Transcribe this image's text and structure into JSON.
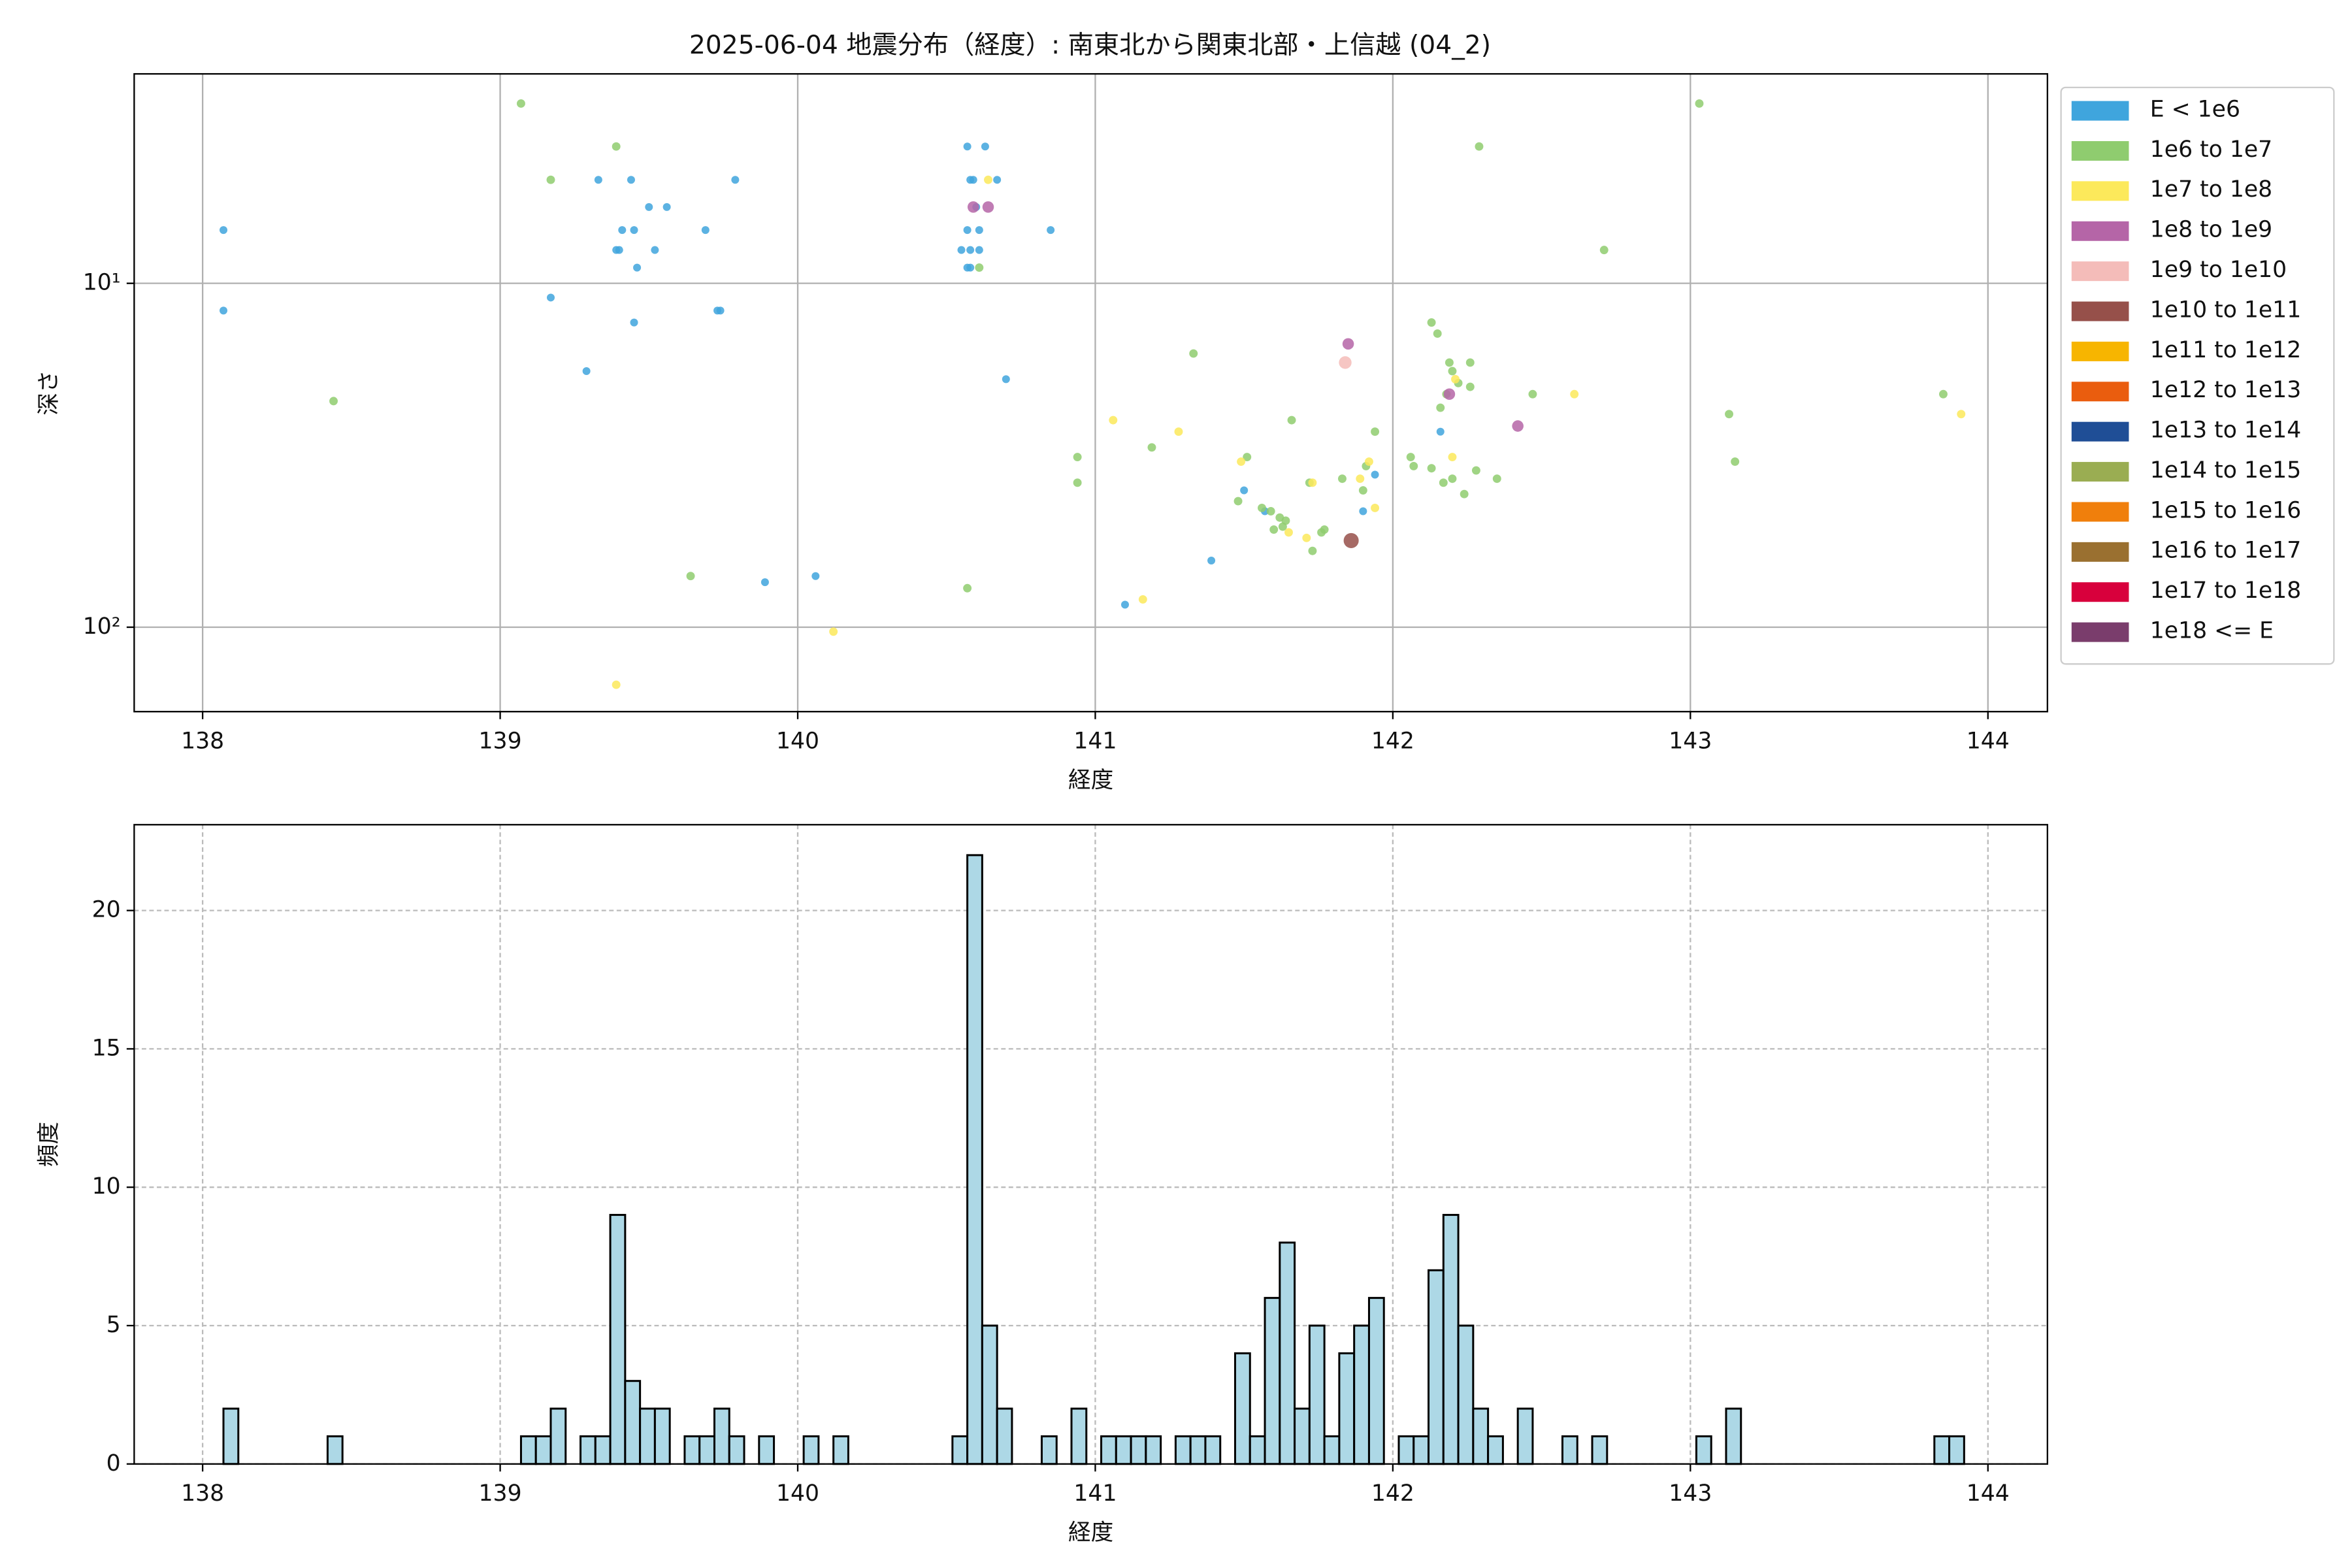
{
  "chart_data": [
    {
      "type": "scatter",
      "title": "2025-06-04 地震分布（経度）: 南東北から関東北部・上信越 (04_2)",
      "xlabel": "経度",
      "ylabel": "深さ",
      "xlim": [
        137.77,
        144.2
      ],
      "xticks": [
        138,
        139,
        140,
        141,
        142,
        143,
        144
      ],
      "ylim": [
        176,
        2.46
      ],
      "yscale": "log",
      "yticks": [
        {
          "value": 10,
          "label": "10¹"
        },
        {
          "value": 100,
          "label": "10²"
        }
      ],
      "grid": true,
      "legend": "outside upper right",
      "series": [
        {
          "name": "E < 1e6",
          "color": "#3fa5dd",
          "x": [
            138.07,
            138.07,
            139.17,
            139.29,
            139.33,
            139.39,
            139.4,
            139.41,
            139.44,
            139.45,
            139.46,
            139.45,
            139.5,
            139.52,
            139.56,
            139.69,
            139.73,
            139.74,
            139.79,
            139.89,
            140.06,
            140.57,
            140.63,
            140.58,
            140.59,
            140.6,
            140.57,
            140.61,
            140.55,
            140.58,
            140.61,
            140.58,
            140.57,
            140.67,
            140.7,
            140.85,
            141.1,
            141.39,
            141.5,
            141.57,
            141.9,
            141.94,
            142.16
          ],
          "values": [
            7,
            12,
            11,
            18,
            5,
            8,
            8,
            7,
            5,
            7,
            9,
            13,
            6,
            8,
            6,
            7,
            12,
            12,
            5,
            74,
            71,
            4,
            4,
            5,
            5,
            6,
            7,
            7,
            8,
            8,
            8,
            9,
            9,
            5,
            19,
            7,
            86,
            64,
            40,
            46,
            46,
            36,
            27
          ]
        },
        {
          "name": "1e6 to 1e7",
          "color": "#8fcc6f",
          "x": [
            139.07,
            138.44,
            139.17,
            139.39,
            139.64,
            140.57,
            140.61,
            140.94,
            140.94,
            141.19,
            141.33,
            141.51,
            141.48,
            141.56,
            141.59,
            141.62,
            141.6,
            141.64,
            141.63,
            141.66,
            141.72,
            141.73,
            141.76,
            141.77,
            141.83,
            141.9,
            141.91,
            141.94,
            142.06,
            142.07,
            142.13,
            142.15,
            142.16,
            142.18,
            142.19,
            142.2,
            142.22,
            142.26,
            142.26,
            142.29,
            142.13,
            142.17,
            142.2,
            142.24,
            142.28,
            142.35,
            142.47,
            142.71,
            143.03,
            143.13,
            143.15,
            143.85
          ],
          "values": [
            3,
            22,
            5,
            4,
            71,
            77,
            9,
            32,
            38,
            30,
            16,
            32,
            43,
            45,
            46,
            48,
            52,
            49,
            51,
            25,
            38,
            60,
            53,
            52,
            37,
            40,
            34,
            27,
            32,
            34,
            13,
            14,
            23,
            21,
            17,
            18,
            19.5,
            17,
            20,
            4,
            34.5,
            38,
            37,
            41,
            35,
            37,
            21,
            8,
            3,
            24,
            33,
            21
          ]
        },
        {
          "name": "1e7 to 1e8",
          "color": "#fce95b",
          "x": [
            139.39,
            140.12,
            141.06,
            141.16,
            141.28,
            141.49,
            141.65,
            141.71,
            141.73,
            141.89,
            141.92,
            141.94,
            142.2,
            142.21,
            142.61,
            143.91,
            140.64
          ],
          "values": [
            147,
            103,
            25,
            83,
            27,
            33,
            53,
            55,
            38,
            37,
            33,
            45,
            32,
            19,
            21,
            24,
            5
          ]
        },
        {
          "name": "1e8 to 1e9",
          "color": "#b565a7",
          "x": [
            140.59,
            140.64,
            141.85,
            142.19,
            142.42
          ],
          "values": [
            6,
            6,
            15,
            21,
            26
          ]
        },
        {
          "name": "1e9 to 1e10",
          "color": "#f4bcb9",
          "x": [
            141.84
          ],
          "values": [
            17
          ]
        },
        {
          "name": "1e10 to 1e11",
          "color": "#96504a",
          "x": [
            141.86
          ],
          "values": [
            56
          ]
        },
        {
          "name": "1e11 to 1e12",
          "color": "#f7b500",
          "x": [],
          "values": []
        },
        {
          "name": "1e12 to 1e13",
          "color": "#ea5d0e",
          "x": [],
          "values": []
        },
        {
          "name": "1e13 to 1e14",
          "color": "#1f4e96",
          "x": [],
          "values": []
        },
        {
          "name": "1e14 to 1e15",
          "color": "#9aad52",
          "x": [],
          "values": []
        },
        {
          "name": "1e15 to 1e16",
          "color": "#f07f0c",
          "x": [],
          "values": []
        },
        {
          "name": "1e16 to 1e17",
          "color": "#9a7030",
          "x": [],
          "values": []
        },
        {
          "name": "1e17 to 1e18",
          "color": "#d8003c",
          "x": [],
          "values": []
        },
        {
          "name": "1e18 <= E",
          "color": "#7a3d6c",
          "x": [],
          "values": []
        }
      ]
    },
    {
      "type": "histogram",
      "xlabel": "経度",
      "ylabel": "頻度",
      "color": "#add8e6",
      "edgecolor": "#000000",
      "xlim": [
        137.77,
        144.2
      ],
      "xticks": [
        138,
        139,
        140,
        141,
        142,
        143,
        144
      ],
      "ylim": [
        0,
        23.1
      ],
      "yticks": [
        0,
        5,
        10,
        15,
        20
      ],
      "grid": true,
      "grid_style": "dashed",
      "bins": [
        138.07,
        138.12,
        138.17,
        138.22,
        138.27,
        138.32,
        138.37,
        138.42,
        138.47,
        138.52,
        138.57,
        138.62,
        138.67,
        138.72,
        138.77,
        138.82,
        138.87,
        138.92,
        138.97,
        139.02,
        139.07,
        139.12,
        139.17,
        139.22,
        139.27,
        139.32,
        139.37,
        139.42,
        139.47,
        139.52,
        139.57,
        139.62,
        139.67,
        139.72,
        139.77,
        139.82,
        139.87,
        139.92,
        139.97,
        140.02,
        140.07,
        140.12,
        140.17,
        140.22,
        140.27,
        140.32,
        140.37,
        140.42,
        140.47,
        140.52,
        140.57,
        140.62,
        140.67,
        140.72,
        140.77,
        140.82,
        140.87,
        140.92,
        140.97,
        141.02,
        141.07,
        141.12,
        141.17,
        141.22,
        141.27,
        141.32,
        141.37,
        141.42,
        141.47,
        141.52,
        141.57,
        141.62,
        141.67,
        141.72,
        141.77,
        141.82,
        141.87,
        141.92,
        141.97,
        142.02,
        142.07,
        142.12,
        142.17,
        142.22,
        142.27,
        142.32,
        142.37,
        142.42,
        142.47,
        142.52,
        142.57,
        142.62,
        142.67,
        142.72,
        142.77,
        142.82,
        142.87,
        142.92,
        142.97,
        143.02,
        143.07,
        143.12,
        143.17,
        143.22,
        143.27,
        143.32,
        143.37,
        143.42,
        143.47,
        143.52,
        143.57,
        143.62,
        143.67,
        143.72,
        143.77,
        143.82,
        143.87,
        143.92
      ],
      "counts": [
        2,
        0,
        0,
        0,
        0,
        0,
        0,
        1,
        0,
        0,
        0,
        0,
        0,
        0,
        0,
        0,
        0,
        0,
        0,
        0,
        1,
        1,
        2,
        0,
        1,
        1,
        9,
        3,
        2,
        2,
        0,
        1,
        1,
        2,
        1,
        0,
        1,
        0,
        0,
        1,
        0,
        1,
        0,
        0,
        0,
        0,
        0,
        0,
        0,
        1,
        22,
        5,
        2,
        0,
        0,
        1,
        0,
        2,
        0,
        1,
        1,
        1,
        1,
        0,
        1,
        1,
        1,
        0,
        4,
        1,
        6,
        8,
        2,
        5,
        1,
        4,
        5,
        6,
        0,
        1,
        1,
        7,
        9,
        5,
        2,
        1,
        0,
        2,
        0,
        0,
        1,
        0,
        1,
        0,
        0,
        0,
        0,
        0,
        0,
        1,
        0,
        2,
        0,
        0,
        0,
        0,
        0,
        0,
        0,
        0,
        0,
        0,
        0,
        0,
        0,
        1,
        1
      ]
    }
  ]
}
